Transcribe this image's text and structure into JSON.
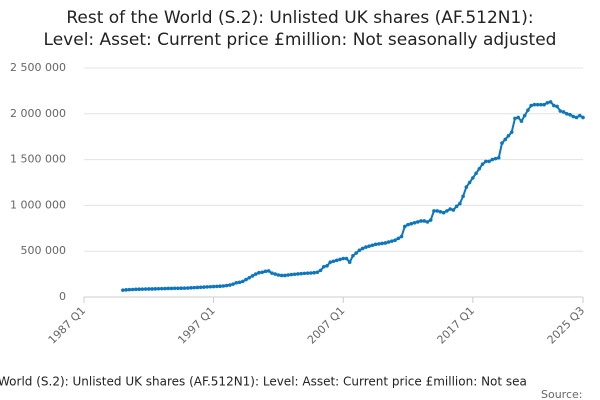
{
  "chart_data": {
    "type": "line",
    "title": [
      "Rest of the World (S.2): Unlisted UK shares (AF.512N1):",
      "Level: Asset: Current price £million: Not seasonally adjusted"
    ],
    "x_label": "World (S.2): Unlisted UK shares (AF.512N1): Level: Asset: Current price £million: Not sea",
    "source": "Source:",
    "color": "#0d76bd",
    "grid": true,
    "ylim": [
      0,
      2500000
    ],
    "yticks": [
      0,
      {
        "value": 500000,
        "label": "500 000"
      },
      {
        "value": 1000000,
        "label": "1 000 000"
      },
      {
        "value": 1500000,
        "label": "1 500 000"
      },
      {
        "value": 2000000,
        "label": "2 000 000"
      },
      {
        "value": 2500000,
        "label": "2 500 000"
      }
    ],
    "categories": [
      "1987 Q1",
      null,
      null,
      null,
      null,
      null,
      null,
      null,
      null,
      null,
      null,
      null,
      null,
      null,
      null,
      null,
      null,
      null,
      null,
      null,
      null,
      null,
      null,
      null,
      null,
      null,
      null,
      null,
      null,
      null,
      null,
      null,
      null,
      null,
      null,
      null,
      null,
      null,
      null,
      null,
      "1997 Q1",
      null,
      null,
      null,
      null,
      null,
      null,
      null,
      null,
      null,
      null,
      null,
      null,
      null,
      null,
      null,
      null,
      null,
      null,
      null,
      null,
      null,
      null,
      null,
      null,
      null,
      null,
      null,
      null,
      null,
      null,
      null,
      null,
      null,
      null,
      null,
      null,
      null,
      null,
      null,
      "2007 Q1",
      null,
      null,
      null,
      null,
      null,
      null,
      null,
      null,
      null,
      null,
      null,
      null,
      null,
      null,
      null,
      null,
      null,
      null,
      null,
      null,
      null,
      null,
      null,
      null,
      null,
      null,
      null,
      null,
      null,
      null,
      null,
      null,
      null,
      null,
      null,
      null,
      null,
      null,
      null,
      "2017 Q1",
      null,
      null,
      null,
      null,
      null,
      null,
      null,
      null,
      null,
      null,
      null,
      null,
      null,
      null,
      null,
      null,
      null,
      null,
      null,
      null,
      null,
      null,
      null,
      null,
      null,
      null,
      null,
      null,
      null,
      null,
      null,
      null,
      null,
      "2025 Q3"
    ],
    "values": [
      null,
      null,
      null,
      null,
      null,
      null,
      null,
      null,
      null,
      null,
      null,
      null,
      75000,
      78000,
      80000,
      82000,
      84000,
      85000,
      86000,
      87000,
      88000,
      88000,
      89000,
      90000,
      91000,
      92000,
      93000,
      94000,
      95000,
      95000,
      96000,
      97000,
      98000,
      100000,
      102000,
      104000,
      106000,
      108000,
      110000,
      112000,
      114000,
      116000,
      118000,
      120000,
      125000,
      130000,
      140000,
      155000,
      160000,
      170000,
      190000,
      210000,
      230000,
      250000,
      265000,
      270000,
      280000,
      285000,
      260000,
      250000,
      240000,
      235000,
      235000,
      240000,
      245000,
      248000,
      252000,
      255000,
      258000,
      260000,
      262000,
      265000,
      270000,
      290000,
      330000,
      340000,
      380000,
      390000,
      400000,
      410000,
      420000,
      420000,
      380000,
      450000,
      480000,
      510000,
      530000,
      545000,
      555000,
      565000,
      575000,
      580000,
      585000,
      590000,
      600000,
      610000,
      620000,
      640000,
      660000,
      770000,
      790000,
      800000,
      810000,
      820000,
      830000,
      830000,
      820000,
      840000,
      940000,
      940000,
      930000,
      920000,
      940000,
      960000,
      950000,
      990000,
      1020000,
      1100000,
      1200000,
      1250000,
      1300000,
      1350000,
      1400000,
      1450000,
      1480000,
      1480000,
      1500000,
      1510000,
      1520000,
      1680000,
      1720000,
      1760000,
      1800000,
      1950000,
      1960000,
      1920000,
      1980000,
      2040000,
      2090000,
      2100000,
      2100000,
      2100000,
      2100000,
      2120000,
      2130000,
      2090000,
      2080000,
      2030000,
      2020000,
      2000000,
      1990000,
      1970000,
      1960000,
      1980000,
      1960000
    ]
  }
}
